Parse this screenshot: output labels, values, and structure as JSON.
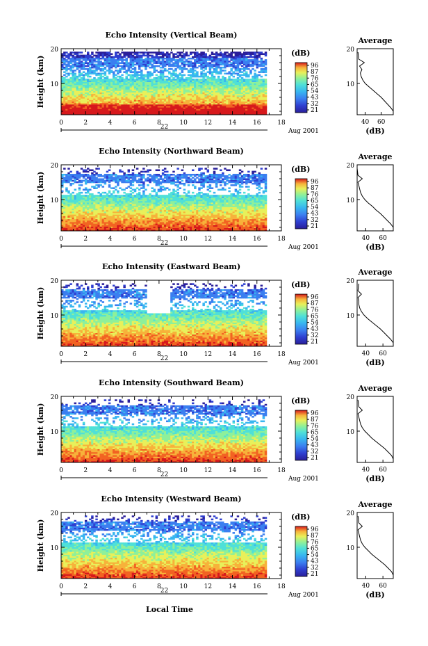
{
  "figure": {
    "xlabel": "Local Time",
    "date_label": "Aug 2001",
    "day_label": "22",
    "colorbar_unit": "(dB)",
    "colorbar_ticks": [
      "96",
      "87",
      "76",
      "65",
      "54",
      "43",
      "32",
      "21"
    ],
    "side_title": "Average",
    "side_xlabel": "(dB)",
    "side_xticks": [
      "40",
      "60"
    ],
    "ylabel": "Height (km)"
  },
  "chart_data": [
    {
      "type": "heatmap",
      "title": "Echo Intensity (Vertical Beam)",
      "xlabel": "",
      "ylabel": "Height (km)",
      "xlim": [
        0,
        18
      ],
      "ylim": [
        1,
        20
      ],
      "xticks": [
        0,
        2,
        4,
        6,
        8,
        10,
        12,
        14,
        16,
        18
      ],
      "yticks": [
        10,
        20
      ],
      "data_end_hour": 16.8,
      "colorscale_db": [
        21,
        96
      ],
      "profile": {
        "title": "Average",
        "xlabel": "(dB)",
        "xlim": [
          30,
          75
        ],
        "x": [
          75,
          72,
          68,
          64,
          60,
          55,
          50,
          45,
          40,
          37,
          35,
          34,
          36,
          33,
          39,
          32,
          31
        ],
        "y": [
          2,
          3,
          4,
          5,
          6,
          7,
          8,
          9,
          10,
          11,
          12,
          13,
          14,
          15,
          16,
          17,
          19
        ]
      }
    },
    {
      "type": "heatmap",
      "title": "Echo Intensity (Northward Beam)",
      "xlabel": "",
      "ylabel": "Height (km)",
      "xlim": [
        0,
        18
      ],
      "ylim": [
        1,
        20
      ],
      "xticks": [
        0,
        2,
        4,
        6,
        8,
        10,
        12,
        14,
        16,
        18
      ],
      "yticks": [
        10,
        20
      ],
      "data_end_hour": 16.8,
      "colorscale_db": [
        21,
        96
      ],
      "profile": {
        "title": "Average",
        "xlabel": "(dB)",
        "xlim": [
          30,
          72
        ],
        "x": [
          72,
          69,
          65,
          61,
          57,
          52,
          48,
          43,
          39,
          36,
          34,
          33,
          32,
          31,
          36,
          31,
          30
        ],
        "y": [
          2,
          3,
          4,
          5,
          6,
          7,
          8,
          9,
          10,
          11,
          12,
          13,
          14,
          15,
          16,
          17,
          19
        ]
      }
    },
    {
      "type": "heatmap",
      "title": "Echo Intensity (Eastward Beam)",
      "xlabel": "",
      "ylabel": "Height (km)",
      "xlim": [
        0,
        18
      ],
      "ylim": [
        1,
        20
      ],
      "xticks": [
        0,
        2,
        4,
        6,
        8,
        10,
        12,
        14,
        16,
        18
      ],
      "yticks": [
        10,
        20
      ],
      "data_end_hour": 16.8,
      "colorscale_db": [
        21,
        96
      ],
      "profile": {
        "title": "Average",
        "xlabel": "(dB)",
        "xlim": [
          30,
          72
        ],
        "x": [
          72,
          69,
          65,
          61,
          57,
          52,
          47,
          42,
          38,
          35,
          33,
          32,
          32,
          31,
          35,
          31,
          32
        ],
        "y": [
          2,
          3,
          4,
          5,
          6,
          7,
          8,
          9,
          10,
          11,
          12,
          13,
          14,
          15,
          16,
          17,
          19
        ]
      }
    },
    {
      "type": "heatmap",
      "title": "Echo Intensity (Southward Beam)",
      "xlabel": "",
      "ylabel": "Height (km)",
      "xlim": [
        0,
        18
      ],
      "ylim": [
        1,
        20
      ],
      "xticks": [
        0,
        2,
        4,
        6,
        8,
        10,
        12,
        14,
        16,
        18
      ],
      "yticks": [
        10,
        20
      ],
      "data_end_hour": 16.8,
      "colorscale_db": [
        21,
        96
      ],
      "profile": {
        "title": "Average",
        "xlabel": "(dB)",
        "xlim": [
          30,
          72
        ],
        "x": [
          72,
          70,
          66,
          62,
          57,
          52,
          47,
          43,
          39,
          36,
          34,
          33,
          32,
          31,
          36,
          32,
          31
        ],
        "y": [
          2,
          3,
          4,
          5,
          6,
          7,
          8,
          9,
          10,
          11,
          12,
          13,
          14,
          15,
          16,
          17,
          19
        ]
      }
    },
    {
      "type": "heatmap",
      "title": "Echo Intensity (Westward Beam)",
      "xlabel": "Local Time",
      "ylabel": "Height (km)",
      "xlim": [
        0,
        18
      ],
      "ylim": [
        1,
        20
      ],
      "xticks": [
        0,
        2,
        4,
        6,
        8,
        10,
        12,
        14,
        16,
        18
      ],
      "yticks": [
        10,
        20
      ],
      "data_end_hour": 16.8,
      "colorscale_db": [
        21,
        96
      ],
      "profile": {
        "title": "Average",
        "xlabel": "(dB)",
        "xlim": [
          30,
          72
        ],
        "x": [
          72,
          70,
          66,
          62,
          57,
          52,
          47,
          43,
          39,
          36,
          34,
          33,
          32,
          31,
          36,
          32,
          31
        ],
        "y": [
          2,
          3,
          4,
          5,
          6,
          7,
          8,
          9,
          10,
          11,
          12,
          13,
          14,
          15,
          16,
          17,
          19
        ]
      }
    }
  ],
  "colors": {
    "jet": [
      "#2a1f9a",
      "#2f3fd0",
      "#3b7ff0",
      "#38b6f0",
      "#4fe0d8",
      "#8ef09a",
      "#e8f05a",
      "#f7b23a",
      "#f26322",
      "#d7191c"
    ],
    "axis": "#000000"
  }
}
